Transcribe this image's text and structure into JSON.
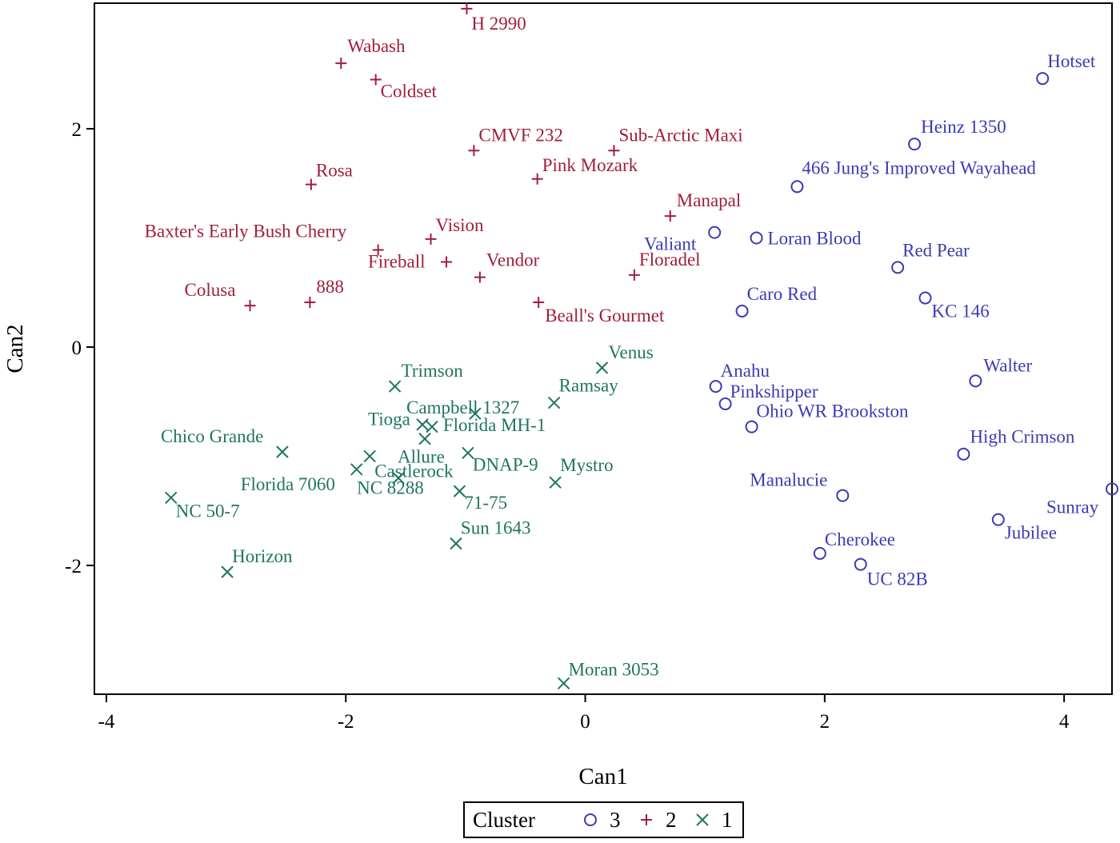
{
  "chart_data": {
    "type": "scatter",
    "xlabel": "Can1",
    "ylabel": "Can2",
    "xlim": [
      -4.1,
      4.4
    ],
    "ylim": [
      -3.18,
      3.15
    ],
    "xticks": [
      -4,
      -2,
      0,
      2,
      4
    ],
    "yticks": [
      -2,
      0,
      2
    ],
    "xtick_labels": [
      "-4",
      "-2",
      "0",
      "2",
      "4"
    ],
    "ytick_labels": [
      "-2",
      "0",
      "2"
    ],
    "grid": false,
    "legend": {
      "title": "Cluster",
      "placement": "bottom-center",
      "entries": [
        {
          "name": "3",
          "marker": "circle",
          "color": "#3b3bb3"
        },
        {
          "name": "2",
          "marker": "plus",
          "color": "#a01e3c"
        },
        {
          "name": "1",
          "marker": "x",
          "color": "#1f7560"
        }
      ]
    },
    "series": [
      {
        "name": "3",
        "marker": "circle",
        "color": "#3b3bb3",
        "points": [
          {
            "x": 3.82,
            "y": 2.46,
            "label": "Hotset"
          },
          {
            "x": 2.75,
            "y": 1.86,
            "label": "Heinz 1350"
          },
          {
            "x": 1.77,
            "y": 1.47,
            "label": "466 Jung's Improved Wayahead"
          },
          {
            "x": 1.08,
            "y": 1.05,
            "label": "Valiant"
          },
          {
            "x": 1.43,
            "y": 1.0,
            "label": "Loran Blood"
          },
          {
            "x": 2.61,
            "y": 0.73,
            "label": "Red Pear"
          },
          {
            "x": 1.31,
            "y": 0.33,
            "label": "Caro Red"
          },
          {
            "x": 2.84,
            "y": 0.45,
            "label": "KC 146"
          },
          {
            "x": 1.09,
            "y": -0.36,
            "label": "Anahu"
          },
          {
            "x": 1.17,
            "y": -0.52,
            "label": "Pinkshipper"
          },
          {
            "x": 1.39,
            "y": -0.73,
            "label": "Ohio WR Brookston"
          },
          {
            "x": 3.26,
            "y": -0.31,
            "label": "Walter"
          },
          {
            "x": 3.16,
            "y": -0.98,
            "label": "High Crimson"
          },
          {
            "x": 2.15,
            "y": -1.36,
            "label": "Manalucie"
          },
          {
            "x": 4.4,
            "y": -1.3,
            "label": "Sunray"
          },
          {
            "x": 3.45,
            "y": -1.58,
            "label": "Jubilee"
          },
          {
            "x": 1.96,
            "y": -1.89,
            "label": "Cherokee"
          },
          {
            "x": 2.3,
            "y": -1.99,
            "label": "UC 82B"
          }
        ]
      },
      {
        "name": "2",
        "marker": "plus",
        "color": "#a01e3c",
        "points": [
          {
            "x": -0.99,
            "y": 3.1,
            "label": "H 2990"
          },
          {
            "x": -2.04,
            "y": 2.6,
            "label": "Wabash"
          },
          {
            "x": -1.75,
            "y": 2.45,
            "label": "Coldset"
          },
          {
            "x": -0.93,
            "y": 1.8,
            "label": "CMVF 232"
          },
          {
            "x": 0.24,
            "y": 1.8,
            "label": "Sub-Arctic Maxi"
          },
          {
            "x": -0.4,
            "y": 1.54,
            "label": "Pink Mozark"
          },
          {
            "x": -2.29,
            "y": 1.49,
            "label": "Rosa"
          },
          {
            "x": 0.71,
            "y": 1.2,
            "label": "Manapal"
          },
          {
            "x": -1.29,
            "y": 0.99,
            "label": "Vision"
          },
          {
            "x": -1.73,
            "y": 0.89,
            "label": "Baxter's Early Bush Cherry"
          },
          {
            "x": -1.16,
            "y": 0.78,
            "label": "Fireball"
          },
          {
            "x": -0.88,
            "y": 0.64,
            "label": "Vendor"
          },
          {
            "x": 0.41,
            "y": 0.66,
            "label": "Floradel"
          },
          {
            "x": -2.8,
            "y": 0.38,
            "label": "Colusa"
          },
          {
            "x": -2.3,
            "y": 0.41,
            "label": "888"
          },
          {
            "x": -0.39,
            "y": 0.41,
            "label": "Beall's Gourmet"
          }
        ]
      },
      {
        "name": "1",
        "marker": "x",
        "color": "#1f7560",
        "points": [
          {
            "x": 0.14,
            "y": -0.19,
            "label": "Venus"
          },
          {
            "x": -1.59,
            "y": -0.36,
            "label": "Trimson"
          },
          {
            "x": -0.26,
            "y": -0.51,
            "label": "Ramsay"
          },
          {
            "x": -1.36,
            "y": -0.71,
            "label": "Campbell 1327"
          },
          {
            "x": -0.92,
            "y": -0.61,
            "label": "Florida MH-1"
          },
          {
            "x": -1.28,
            "y": -0.73,
            "label": "Tioga"
          },
          {
            "x": -1.34,
            "y": -0.84,
            "label": "Allure"
          },
          {
            "x": -2.53,
            "y": -0.96,
            "label": "Chico Grande"
          },
          {
            "x": -1.8,
            "y": -1.0,
            "label": "Castlerock"
          },
          {
            "x": -0.98,
            "y": -0.97,
            "label": "DNAP-9"
          },
          {
            "x": -1.91,
            "y": -1.12,
            "label": "Florida 7060"
          },
          {
            "x": -1.56,
            "y": -1.2,
            "label": "NC 8288"
          },
          {
            "x": -1.05,
            "y": -1.32,
            "label": "71-75"
          },
          {
            "x": -0.25,
            "y": -1.24,
            "label": "Mystro"
          },
          {
            "x": -3.46,
            "y": -1.38,
            "label": "NC 50-7"
          },
          {
            "x": -1.08,
            "y": -1.8,
            "label": "Sun 1643"
          },
          {
            "x": -2.99,
            "y": -2.06,
            "label": "Horizon"
          },
          {
            "x": -0.18,
            "y": -3.08,
            "label": "Moran 3053"
          }
        ]
      }
    ]
  }
}
